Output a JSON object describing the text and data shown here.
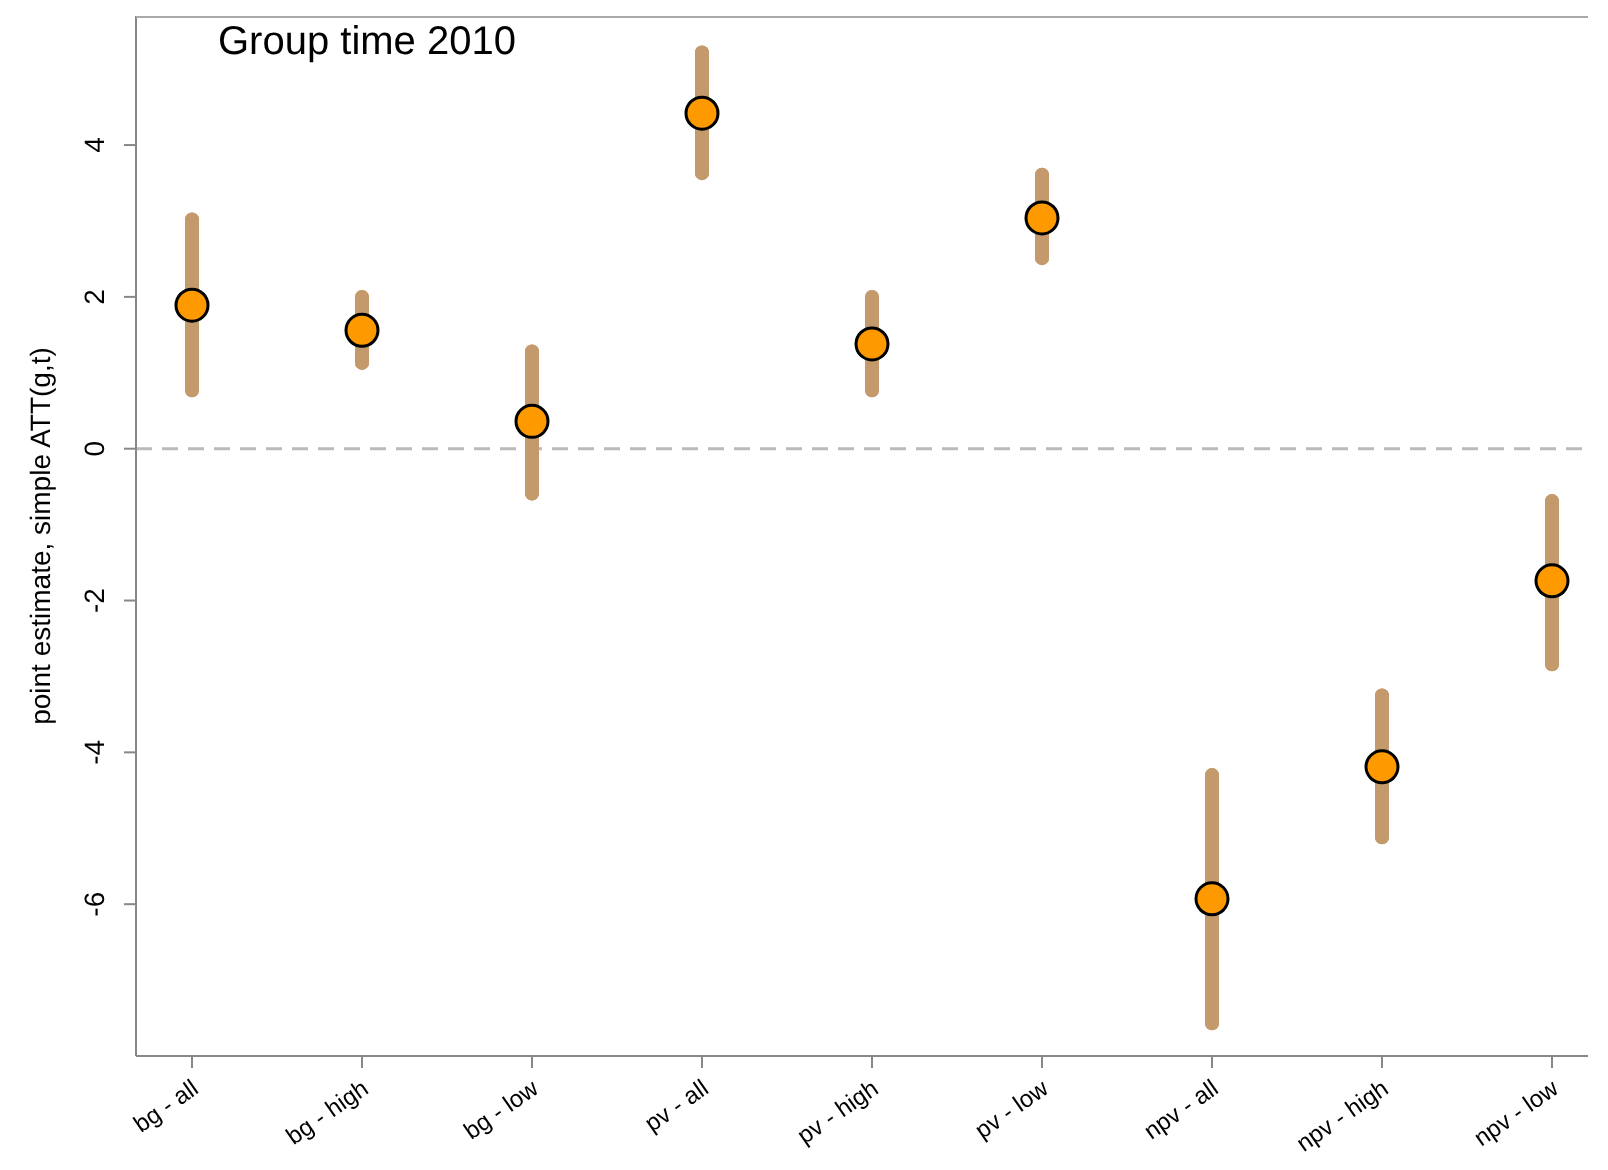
{
  "chart_data": {
    "type": "scatter",
    "title": "Group time 2010",
    "ylabel": "point estimate, simple ATT(g,t)",
    "categories": [
      "bg - all",
      "bg - high",
      "bg - low",
      "pv - all",
      "pv - high",
      "pv - low",
      "npv - all",
      "npv - high",
      "npv - low"
    ],
    "series": [
      {
        "color": "#ff9900",
        "values": [
          1.89,
          1.56,
          0.36,
          4.42,
          1.38,
          3.04,
          -5.93,
          -4.19,
          -1.74
        ],
        "errors": [
          [
            0.77,
            3.02
          ],
          [
            1.13,
            2.0
          ],
          [
            -0.59,
            1.28
          ],
          [
            3.63,
            5.22
          ],
          [
            0.77,
            2.0
          ],
          [
            2.51,
            3.61
          ],
          [
            -7.57,
            -4.3
          ],
          [
            -5.12,
            -3.25
          ],
          [
            -2.84,
            -0.69
          ]
        ]
      }
    ],
    "ylim": [
      -8,
      5.7
    ],
    "yticks": [
      -6,
      -4,
      -2,
      0,
      2,
      4
    ],
    "grid": false,
    "legend": false,
    "marker": "circle",
    "ref_lines": [
      {
        "axis": "y",
        "value": 0,
        "color": "#bbbbbb",
        "line_style": "dashed"
      }
    ]
  }
}
